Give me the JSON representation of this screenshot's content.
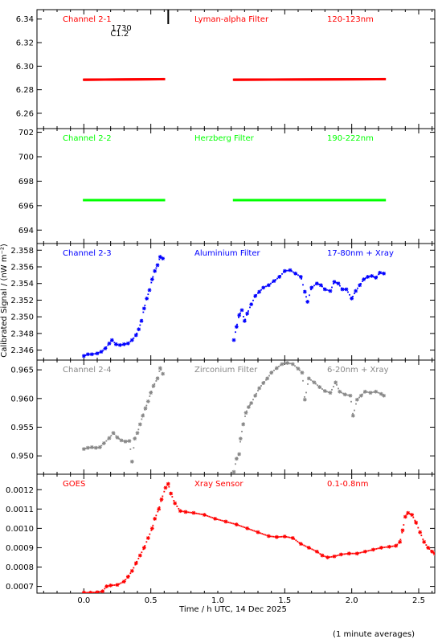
{
  "figure": {
    "x_axis_label": "Time / h UTC, 14 Dec 2025",
    "y_axis_label": "Calibrated Signal / (nW m⁻²)",
    "footer_note": "(1 minute averages)"
  },
  "colors": {
    "red": "#ff0000",
    "green": "#00ff00",
    "blue": "#0000ff",
    "gray": "#888888",
    "axis": "#000000"
  },
  "chart_data": [
    {
      "type": "scatter",
      "panel_label": "Channel 2-1",
      "filter": "Lyman-alpha Filter",
      "band": "120-123nm",
      "color": "red",
      "xlim": [
        -0.35,
        2.62
      ],
      "ylim": [
        6.247,
        6.348
      ],
      "yticks": [
        6.26,
        6.28,
        6.3,
        6.32,
        6.34
      ],
      "ytick_labels": [
        "6.26",
        "6.28",
        "6.30",
        "6.32",
        "6.34"
      ],
      "flare_marker": {
        "x": 0.63,
        "label_time": "1730",
        "label_class": "C1.2"
      },
      "series": [
        {
          "segments": [
            {
              "x0": 0.0,
              "x1": 0.6,
              "y0": 6.2885,
              "y1": 6.289
            },
            {
              "x0": 1.12,
              "x1": 2.25,
              "y0": 6.2885,
              "y1": 6.289
            }
          ]
        }
      ]
    },
    {
      "type": "scatter",
      "panel_label": "Channel 2-2",
      "filter": "Herzberg Filter",
      "band": "190-222nm",
      "color": "green",
      "xlim": [
        -0.35,
        2.62
      ],
      "ylim": [
        692.9,
        702.3
      ],
      "yticks": [
        694,
        696,
        698,
        700,
        702
      ],
      "ytick_labels": [
        "694",
        "696",
        "698",
        "700",
        "702"
      ],
      "series": [
        {
          "segments": [
            {
              "x0": 0.0,
              "x1": 0.6,
              "y0": 696.45,
              "y1": 696.45
            },
            {
              "x0": 1.12,
              "x1": 2.25,
              "y0": 696.45,
              "y1": 696.45
            }
          ]
        }
      ]
    },
    {
      "type": "scatter",
      "panel_label": "Channel 2-3",
      "filter": "Aluminium Filter",
      "band": "17-80nm + Xray",
      "color": "blue",
      "xlim": [
        -0.35,
        2.62
      ],
      "ylim": [
        2.3448,
        2.3588
      ],
      "yticks": [
        2.346,
        2.348,
        2.35,
        2.352,
        2.354,
        2.356,
        2.358
      ],
      "ytick_labels": [
        "2.346",
        "2.348",
        "2.350",
        "2.352",
        "2.354",
        "2.356",
        "2.358"
      ],
      "series": [
        {
          "points": [
            [
              0.0,
              2.3453
            ],
            [
              0.03,
              2.3455
            ],
            [
              0.06,
              2.3455
            ],
            [
              0.1,
              2.3456
            ],
            [
              0.13,
              2.3458
            ],
            [
              0.16,
              2.3462
            ],
            [
              0.19,
              2.3468
            ],
            [
              0.21,
              2.3472
            ],
            [
              0.24,
              2.3467
            ],
            [
              0.27,
              2.3466
            ],
            [
              0.3,
              2.3467
            ],
            [
              0.33,
              2.3468
            ],
            [
              0.36,
              2.3472
            ],
            [
              0.39,
              2.3478
            ],
            [
              0.41,
              2.3485
            ],
            [
              0.43,
              2.3495
            ],
            [
              0.45,
              2.351
            ],
            [
              0.47,
              2.3522
            ],
            [
              0.49,
              2.3532
            ],
            [
              0.51,
              2.3545
            ],
            [
              0.53,
              2.3555
            ],
            [
              0.55,
              2.3562
            ],
            [
              0.57,
              2.3572
            ],
            [
              0.59,
              2.357
            ],
            [
              1.12,
              2.3472
            ],
            [
              1.14,
              2.3488
            ],
            [
              1.16,
              2.3502
            ],
            [
              1.18,
              2.3508
            ],
            [
              1.2,
              2.3495
            ],
            [
              1.22,
              2.3504
            ],
            [
              1.25,
              2.3515
            ],
            [
              1.28,
              2.3525
            ],
            [
              1.31,
              2.353
            ],
            [
              1.34,
              2.3535
            ],
            [
              1.38,
              2.3538
            ],
            [
              1.42,
              2.3543
            ],
            [
              1.46,
              2.3548
            ],
            [
              1.5,
              2.3555
            ],
            [
              1.54,
              2.3556
            ],
            [
              1.58,
              2.3552
            ],
            [
              1.62,
              2.3548
            ],
            [
              1.65,
              2.353
            ],
            [
              1.67,
              2.3518
            ],
            [
              1.7,
              2.3535
            ],
            [
              1.74,
              2.354
            ],
            [
              1.77,
              2.3538
            ],
            [
              1.8,
              2.3533
            ],
            [
              1.84,
              2.3531
            ],
            [
              1.87,
              2.3542
            ],
            [
              1.9,
              2.354
            ],
            [
              1.93,
              2.3533
            ],
            [
              1.96,
              2.3533
            ],
            [
              2.0,
              2.3522
            ],
            [
              2.03,
              2.3531
            ],
            [
              2.06,
              2.3538
            ],
            [
              2.09,
              2.3545
            ],
            [
              2.12,
              2.3548
            ],
            [
              2.15,
              2.3549
            ],
            [
              2.18,
              2.3547
            ],
            [
              2.21,
              2.3553
            ],
            [
              2.24,
              2.3552
            ]
          ]
        }
      ]
    },
    {
      "type": "scatter",
      "panel_label": "Channel 2-4",
      "filter": "Zirconium Filter",
      "band": "6-20nm + Xray",
      "color": "gray",
      "xlim": [
        -0.35,
        2.62
      ],
      "ylim": [
        0.9468,
        0.9667
      ],
      "yticks": [
        0.95,
        0.955,
        0.96,
        0.965
      ],
      "ytick_labels": [
        "0.950",
        "0.955",
        "0.960",
        "0.965"
      ],
      "series": [
        {
          "points": [
            [
              0.0,
              0.9512
            ],
            [
              0.03,
              0.9514
            ],
            [
              0.06,
              0.9515
            ],
            [
              0.09,
              0.9514
            ],
            [
              0.12,
              0.9515
            ],
            [
              0.15,
              0.9522
            ],
            [
              0.19,
              0.9531
            ],
            [
              0.22,
              0.954
            ],
            [
              0.25,
              0.9532
            ],
            [
              0.28,
              0.9527
            ],
            [
              0.31,
              0.9525
            ],
            [
              0.34,
              0.9526
            ],
            [
              0.36,
              0.949
            ],
            [
              0.38,
              0.953
            ],
            [
              0.4,
              0.954
            ],
            [
              0.42,
              0.9555
            ],
            [
              0.44,
              0.957
            ],
            [
              0.46,
              0.9583
            ],
            [
              0.48,
              0.9595
            ],
            [
              0.5,
              0.961
            ],
            [
              0.52,
              0.9622
            ],
            [
              0.55,
              0.9635
            ],
            [
              0.57,
              0.9653
            ],
            [
              0.59,
              0.9643
            ],
            [
              1.12,
              0.9472
            ],
            [
              1.14,
              0.9495
            ],
            [
              1.16,
              0.9503
            ],
            [
              1.17,
              0.953
            ],
            [
              1.19,
              0.9555
            ],
            [
              1.21,
              0.9575
            ],
            [
              1.23,
              0.9585
            ],
            [
              1.25,
              0.9592
            ],
            [
              1.28,
              0.9605
            ],
            [
              1.31,
              0.9618
            ],
            [
              1.34,
              0.9627
            ],
            [
              1.37,
              0.9635
            ],
            [
              1.4,
              0.9645
            ],
            [
              1.44,
              0.9653
            ],
            [
              1.48,
              0.966
            ],
            [
              1.52,
              0.9662
            ],
            [
              1.56,
              0.966
            ],
            [
              1.6,
              0.9652
            ],
            [
              1.63,
              0.9645
            ],
            [
              1.65,
              0.9598
            ],
            [
              1.68,
              0.9635
            ],
            [
              1.72,
              0.9628
            ],
            [
              1.76,
              0.962
            ],
            [
              1.8,
              0.9613
            ],
            [
              1.84,
              0.961
            ],
            [
              1.88,
              0.9628
            ],
            [
              1.91,
              0.9612
            ],
            [
              1.95,
              0.9607
            ],
            [
              1.99,
              0.9605
            ],
            [
              2.01,
              0.957
            ],
            [
              2.04,
              0.9598
            ],
            [
              2.07,
              0.9605
            ],
            [
              2.1,
              0.9612
            ],
            [
              2.14,
              0.961
            ],
            [
              2.18,
              0.9612
            ],
            [
              2.22,
              0.9608
            ],
            [
              2.24,
              0.9605
            ]
          ]
        }
      ]
    },
    {
      "type": "scatter",
      "panel_label": "GOES",
      "filter": "Xray Sensor",
      "band": "0.1-0.8nm",
      "color": "red",
      "xlim": [
        -0.35,
        2.62
      ],
      "ylim": [
        0.000665,
        0.00128
      ],
      "yticks": [
        0.0007,
        0.0008,
        0.0009,
        0.001,
        0.0011,
        0.0012
      ],
      "ytick_labels": [
        "0.0007",
        "0.0008",
        "0.0009",
        "0.0010",
        "0.0011",
        "0.0012"
      ],
      "series": [
        {
          "points": [
            [
              0.0,
              0.000668
            ],
            [
              0.05,
              0.000668
            ],
            [
              0.1,
              0.00067
            ],
            [
              0.14,
              0.000675
            ],
            [
              0.17,
              0.0007
            ],
            [
              0.2,
              0.000705
            ],
            [
              0.25,
              0.000708
            ],
            [
              0.3,
              0.000725
            ],
            [
              0.33,
              0.00075
            ],
            [
              0.36,
              0.00078
            ],
            [
              0.39,
              0.00082
            ],
            [
              0.42,
              0.00086
            ],
            [
              0.45,
              0.0009
            ],
            [
              0.48,
              0.00095
            ],
            [
              0.51,
              0.001
            ],
            [
              0.53,
              0.00105
            ],
            [
              0.56,
              0.0011
            ],
            [
              0.58,
              0.00115
            ],
            [
              0.61,
              0.00121
            ],
            [
              0.63,
              0.00123
            ],
            [
              0.65,
              0.00118
            ],
            [
              0.68,
              0.00113
            ],
            [
              0.72,
              0.00109
            ],
            [
              0.76,
              0.001085
            ],
            [
              0.82,
              0.00108
            ],
            [
              0.9,
              0.00107
            ],
            [
              0.98,
              0.00105
            ],
            [
              1.06,
              0.001035
            ],
            [
              1.14,
              0.00102
            ],
            [
              1.22,
              0.001
            ],
            [
              1.3,
              0.00098
            ],
            [
              1.38,
              0.00096
            ],
            [
              1.44,
              0.000955
            ],
            [
              1.5,
              0.000958
            ],
            [
              1.56,
              0.00095
            ],
            [
              1.62,
              0.00092
            ],
            [
              1.68,
              0.0009
            ],
            [
              1.74,
              0.00088
            ],
            [
              1.78,
              0.00086
            ],
            [
              1.82,
              0.00085
            ],
            [
              1.87,
              0.000855
            ],
            [
              1.92,
              0.000865
            ],
            [
              1.98,
              0.00087
            ],
            [
              2.04,
              0.00087
            ],
            [
              2.1,
              0.00088
            ],
            [
              2.16,
              0.00089
            ],
            [
              2.22,
              0.0009
            ],
            [
              2.28,
              0.000905
            ],
            [
              2.33,
              0.00091
            ],
            [
              2.36,
              0.00093
            ],
            [
              2.38,
              0.00099
            ],
            [
              2.4,
              0.00106
            ],
            [
              2.42,
              0.00108
            ],
            [
              2.45,
              0.00107
            ],
            [
              2.48,
              0.00103
            ],
            [
              2.51,
              0.00098
            ],
            [
              2.54,
              0.00093
            ],
            [
              2.57,
              0.0009
            ],
            [
              2.6,
              0.00088
            ],
            [
              2.62,
              0.00087
            ]
          ]
        }
      ]
    }
  ]
}
